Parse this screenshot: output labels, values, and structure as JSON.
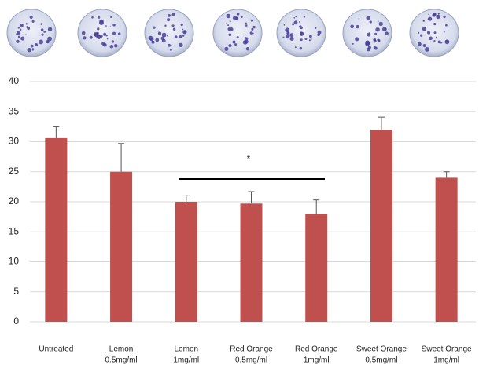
{
  "chart_data": {
    "type": "bar",
    "categories": [
      [
        "Untreated"
      ],
      [
        "Lemon",
        "0.5mg/ml"
      ],
      [
        "Lemon",
        "1mg/ml"
      ],
      [
        "Red Orange",
        "0.5mg/ml"
      ],
      [
        "Red Orange",
        "1mg/ml"
      ],
      [
        "Sweet Orange",
        "0.5mg/ml"
      ],
      [
        "Sweet Orange",
        "1mg/ml"
      ]
    ],
    "values": [
      30.6,
      25,
      20,
      19.7,
      18,
      32,
      24
    ],
    "errors": [
      1.9,
      4.7,
      1.1,
      2.0,
      2.3,
      2.1,
      1.0
    ],
    "color": "#c0504d",
    "ylim": [
      0,
      40
    ],
    "yticks": [
      0,
      5,
      10,
      15,
      20,
      25,
      30,
      35,
      40
    ],
    "grid": true,
    "annotation": "*"
  }
}
